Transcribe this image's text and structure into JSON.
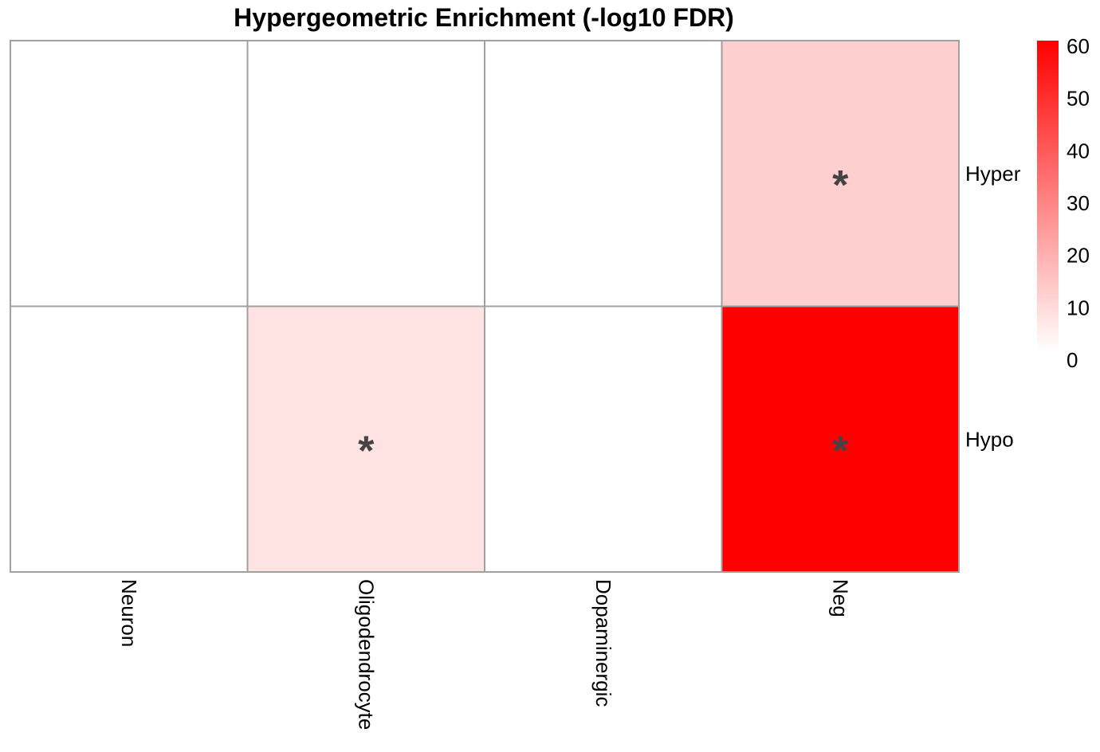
{
  "chart_data": {
    "type": "heatmap",
    "title": "Hypergeometric Enrichment (-log10 FDR)",
    "columns": [
      "Neuron",
      "Oligodendrocyte",
      "Dopaminergic",
      "Neg"
    ],
    "rows": [
      "Hyper",
      "Hypo"
    ],
    "values": [
      [
        0,
        0,
        0,
        11.5
      ],
      [
        0,
        6.5,
        0,
        60
      ]
    ],
    "annotations": [
      [
        "",
        "",
        "",
        "*"
      ],
      [
        "",
        "*",
        "",
        "*"
      ]
    ],
    "color_scale": {
      "min": 0,
      "max": 60,
      "low_color": "#ffffff",
      "high_color": "#ff0000",
      "ticks": [
        0,
        10,
        20,
        30,
        40,
        50,
        60
      ]
    },
    "cell_border_color": "#a0a0a0",
    "annotation_color": "#444444",
    "legend_position": "right"
  }
}
